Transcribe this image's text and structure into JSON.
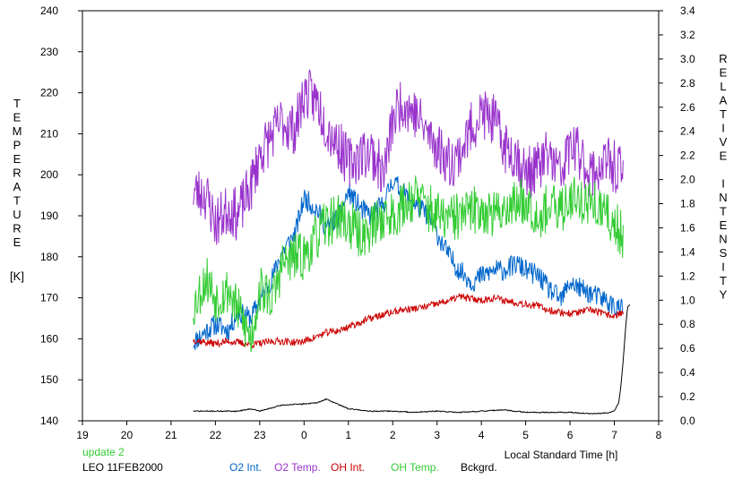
{
  "chart_data": {
    "type": "line",
    "title": "",
    "xlabel": "Local Standard Time [h]",
    "ylabel_left": [
      "T",
      "E",
      "M",
      "P",
      "E",
      "R",
      "A",
      "T",
      "U",
      "R",
      "E"
    ],
    "ylabel_left_unit": "[K]",
    "ylabel_right": [
      "R",
      "E",
      "L",
      "A",
      "T",
      "I",
      "V",
      "E",
      "",
      "I",
      "N",
      "T",
      "E",
      "N",
      "S",
      "I",
      "T",
      "Y"
    ],
    "x_axis": {
      "min": 19,
      "max": 32,
      "tick_step": 1,
      "tick_labels": [
        "19",
        "20",
        "21",
        "22",
        "23",
        "0",
        "1",
        "2",
        "3",
        "4",
        "5",
        "6",
        "7",
        "8"
      ]
    },
    "y_left": {
      "min": 140,
      "max": 240,
      "tick_step": 10,
      "tick_labels": [
        "140",
        "150",
        "160",
        "170",
        "180",
        "190",
        "200",
        "210",
        "220",
        "230",
        "240"
      ]
    },
    "y_right": {
      "min": 0,
      "max": 3.4,
      "tick_step": 0.2,
      "tick_labels": [
        "0.0",
        "0.2",
        "0.4",
        "0.6",
        "0.8",
        "1.0",
        "1.2",
        "1.4",
        "1.6",
        "1.8",
        "2.0",
        "2.2",
        "2.4",
        "2.6",
        "2.8",
        "3.0",
        "3.2",
        "3.4"
      ]
    },
    "grid": false,
    "legend_placement": "bottom",
    "series": [
      {
        "name": "O2 Int.",
        "axis": "right",
        "color": "#0066cc",
        "noise": 0.09,
        "seed": 11,
        "x": [
          21.5,
          21.8,
          22.0,
          22.3,
          22.5,
          22.8,
          23.0,
          23.3,
          23.5,
          23.8,
          24.0,
          24.3,
          24.5,
          24.8,
          25.0,
          25.3,
          25.5,
          25.8,
          26.0,
          26.2,
          26.5,
          26.8,
          27.0,
          27.3,
          27.5,
          27.8,
          28.0,
          28.3,
          28.5,
          28.8,
          29.0,
          29.3,
          29.5,
          29.8,
          30.0,
          30.2,
          30.5,
          30.8,
          31.0,
          31.2
        ],
        "y": [
          0.65,
          0.75,
          0.8,
          0.75,
          0.9,
          0.85,
          1.0,
          1.2,
          1.4,
          1.55,
          1.85,
          1.75,
          1.6,
          1.7,
          1.9,
          1.75,
          1.7,
          1.8,
          2.0,
          1.9,
          1.8,
          1.7,
          1.55,
          1.35,
          1.25,
          1.15,
          1.2,
          1.25,
          1.25,
          1.3,
          1.25,
          1.2,
          1.1,
          1.0,
          1.15,
          1.1,
          1.05,
          1.0,
          0.95,
          0.92
        ]
      },
      {
        "name": "O2 Temp.",
        "axis": "left",
        "color": "#9933cc",
        "noise": 6.5,
        "seed": 23,
        "x": [
          21.5,
          21.8,
          22.0,
          22.3,
          22.5,
          22.8,
          23.0,
          23.3,
          23.5,
          23.8,
          24.0,
          24.3,
          24.5,
          24.8,
          25.0,
          25.3,
          25.5,
          25.8,
          26.0,
          26.2,
          26.5,
          26.8,
          27.0,
          27.3,
          27.5,
          27.8,
          28.0,
          28.3,
          28.5,
          28.8,
          29.0,
          29.3,
          29.5,
          29.8,
          30.0,
          30.2,
          30.5,
          30.8,
          31.0,
          31.2
        ],
        "y": [
          196,
          195,
          188,
          192,
          190,
          197,
          205,
          210,
          213,
          211,
          220,
          218,
          212,
          207,
          203,
          205,
          206,
          200,
          213,
          218,
          215,
          210,
          207,
          203,
          205,
          212,
          215,
          213,
          207,
          205,
          200,
          202,
          205,
          200,
          207,
          205,
          200,
          203,
          202,
          200
        ]
      },
      {
        "name": "OH Int.",
        "axis": "right",
        "color": "#cc0000",
        "noise": 0.03,
        "seed": 37,
        "x": [
          21.5,
          21.8,
          22.0,
          22.3,
          22.5,
          22.8,
          23.0,
          23.3,
          23.5,
          23.8,
          24.0,
          24.3,
          24.5,
          24.8,
          25.0,
          25.3,
          25.5,
          25.8,
          26.0,
          26.2,
          26.5,
          26.8,
          27.0,
          27.3,
          27.5,
          27.8,
          28.0,
          28.3,
          28.5,
          28.8,
          29.0,
          29.3,
          29.5,
          29.8,
          30.0,
          30.2,
          30.5,
          30.8,
          31.0,
          31.2
        ],
        "y": [
          0.67,
          0.65,
          0.64,
          0.66,
          0.65,
          0.63,
          0.64,
          0.66,
          0.66,
          0.65,
          0.66,
          0.7,
          0.73,
          0.75,
          0.78,
          0.82,
          0.85,
          0.88,
          0.9,
          0.92,
          0.93,
          0.95,
          0.97,
          1.0,
          1.03,
          1.01,
          1.0,
          1.02,
          1.0,
          0.98,
          0.97,
          0.95,
          0.92,
          0.9,
          0.89,
          0.9,
          0.92,
          0.88,
          0.87,
          0.9
        ]
      },
      {
        "name": "OH Temp.",
        "axis": "left",
        "color": "#33cc33",
        "noise": 6.0,
        "seed": 53,
        "x": [
          21.5,
          21.8,
          22.0,
          22.3,
          22.5,
          22.8,
          23.0,
          23.3,
          23.5,
          23.8,
          24.0,
          24.3,
          24.5,
          24.8,
          25.0,
          25.3,
          25.5,
          25.8,
          26.0,
          26.2,
          26.5,
          26.8,
          27.0,
          27.3,
          27.5,
          27.8,
          28.0,
          28.3,
          28.5,
          28.8,
          29.0,
          29.3,
          29.5,
          29.8,
          30.0,
          30.2,
          30.5,
          30.8,
          31.0,
          31.2
        ],
        "y": [
          168,
          175,
          170,
          172,
          167,
          160,
          172,
          170,
          178,
          180,
          180,
          185,
          188,
          190,
          188,
          185,
          187,
          190,
          190,
          192,
          195,
          192,
          190,
          189,
          190,
          191,
          192,
          190,
          192,
          193,
          194,
          190,
          192,
          191,
          195,
          194,
          193,
          190,
          188,
          185
        ]
      },
      {
        "name": "Bckgrd.",
        "axis": "right",
        "color": "#000000",
        "noise": 0.004,
        "seed": 71,
        "x": [
          21.5,
          22.0,
          22.5,
          22.8,
          23.0,
          23.5,
          24.0,
          24.3,
          24.5,
          25.0,
          25.5,
          26.0,
          26.5,
          27.0,
          27.5,
          28.0,
          28.5,
          29.0,
          29.5,
          30.0,
          30.4,
          30.7,
          30.9,
          31.0,
          31.1,
          31.15,
          31.2,
          31.25,
          31.3,
          31.35
        ],
        "y": [
          0.08,
          0.08,
          0.08,
          0.1,
          0.08,
          0.13,
          0.14,
          0.15,
          0.18,
          0.1,
          0.08,
          0.08,
          0.07,
          0.08,
          0.07,
          0.08,
          0.09,
          0.07,
          0.07,
          0.07,
          0.06,
          0.06,
          0.07,
          0.08,
          0.15,
          0.3,
          0.5,
          0.75,
          0.95,
          0.96
        ]
      }
    ]
  },
  "footer": {
    "update": "update 2",
    "station": "LEO 11FEB2000",
    "update_color": "#33cc33"
  }
}
